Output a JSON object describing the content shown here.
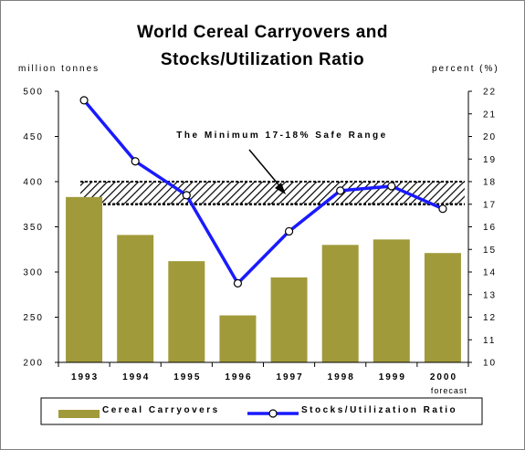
{
  "chart_data": {
    "type": "bar+line",
    "title_line1": "World Cereal Carryovers and",
    "title_line2": "Stocks/Utilization Ratio",
    "left_axis_label": "million tonnes",
    "right_axis_label": "percent (%)",
    "categories": [
      "1993",
      "1994",
      "1995",
      "1996",
      "1997",
      "1998",
      "1999",
      "2000"
    ],
    "category_note": "forecast",
    "left_ylim": [
      200,
      500
    ],
    "left_ticks": [
      "500",
      "450",
      "400",
      "350",
      "300",
      "250",
      "200"
    ],
    "right_ylim": [
      10,
      22
    ],
    "right_ticks": [
      "22",
      "21",
      "20",
      "19",
      "18",
      "17",
      "16",
      "15",
      "14",
      "13",
      "12",
      "11",
      "10"
    ],
    "series": [
      {
        "name": "Cereal Carryovers",
        "type": "bar",
        "axis": "left",
        "values": [
          383,
          341,
          312,
          252,
          294,
          330,
          336,
          321
        ]
      },
      {
        "name": "Stocks/Utilization Ratio",
        "type": "line",
        "axis": "right",
        "values": [
          21.6,
          18.9,
          17.4,
          13.5,
          15.8,
          17.6,
          17.8,
          16.8
        ]
      }
    ],
    "safe_range": {
      "label": "The Minimum 17-18% Safe Range",
      "low": 17,
      "high": 18
    },
    "colors": {
      "bar": "#a19a3a",
      "line": "#1a1aff",
      "marker_fill": "#ffffff"
    },
    "legend_position": "bottom",
    "grid": false
  }
}
